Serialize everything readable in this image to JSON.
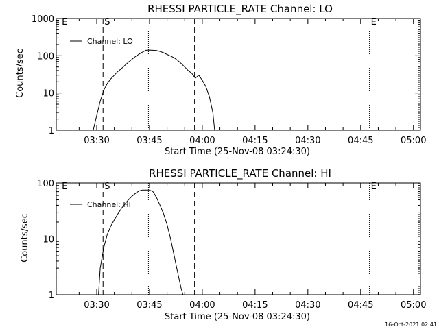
{
  "footer": {
    "timestamp": "16-Oct-2021 02:41"
  },
  "chart_data": [
    {
      "type": "line",
      "title": "RHESSI PARTICLE_RATE Channel: LO",
      "xlabel": "Start Time (25-Nov-08 03:24:30)",
      "ylabel": "Counts/sec",
      "yscale": "log",
      "ylim": [
        1,
        1000
      ],
      "xlim_min": [
        -5.5,
        98
      ],
      "xticks": [
        {
          "t": 6,
          "label": "03:30"
        },
        {
          "t": 21,
          "label": "03:45"
        },
        {
          "t": 36,
          "label": "04:00"
        },
        {
          "t": 51,
          "label": "04:15"
        },
        {
          "t": 66,
          "label": "04:30"
        },
        {
          "t": 81,
          "label": "04:45"
        },
        {
          "t": 96,
          "label": "05:00"
        }
      ],
      "yticks": [
        {
          "v": 1,
          "label": "1"
        },
        {
          "v": 10,
          "label": "10"
        },
        {
          "v": 100,
          "label": "100"
        },
        {
          "v": 1000,
          "label": "1000"
        }
      ],
      "legend": "Channel: LO",
      "markers": [
        {
          "t": -4.3,
          "style": "none",
          "label": "E"
        },
        {
          "t": 7.8,
          "style": "dashed",
          "label": "S"
        },
        {
          "t": 20.7,
          "style": "dotted",
          "label": ""
        },
        {
          "t": 33.8,
          "style": "dashed",
          "label": ""
        },
        {
          "t": 83.5,
          "style": "dotted",
          "label": "E"
        },
        {
          "t": 97.6,
          "style": "dotted",
          "label": ""
        }
      ],
      "series": [
        {
          "name": "Channel: LO",
          "x": [
            5.0,
            6.0,
            7.0,
            8.0,
            9.0,
            10.0,
            11.0,
            12.0,
            13.0,
            14.0,
            15.0,
            16.0,
            17.0,
            18.0,
            19.0,
            20.0,
            21.0,
            22.0,
            23.0,
            24.0,
            25.0,
            26.0,
            27.0,
            28.0,
            29.0,
            30.0,
            31.0,
            32.0,
            33.0,
            34.0,
            35.0,
            36.0,
            37.0,
            38.0,
            39.0,
            39.5
          ],
          "y": [
            1.0,
            2.5,
            6.0,
            12.0,
            18.0,
            24.0,
            30.0,
            38.0,
            45.0,
            55.0,
            67.0,
            80.0,
            95.0,
            110.0,
            125.0,
            140.0,
            142.0,
            140.0,
            138.0,
            130.0,
            120.0,
            108.0,
            98.0,
            88.0,
            75.0,
            62.0,
            50.0,
            40.0,
            34.0,
            25.0,
            30.0,
            22.0,
            15.0,
            8.0,
            3.0,
            1.0
          ]
        }
      ]
    },
    {
      "type": "line",
      "title": "RHESSI PARTICLE_RATE Channel: HI",
      "xlabel": "Start Time (25-Nov-08 03:24:30)",
      "ylabel": "Counts/sec",
      "yscale": "log",
      "ylim": [
        1,
        100
      ],
      "xlim_min": [
        -5.5,
        98
      ],
      "xticks": [
        {
          "t": 6,
          "label": "03:30"
        },
        {
          "t": 21,
          "label": "03:45"
        },
        {
          "t": 36,
          "label": "04:00"
        },
        {
          "t": 51,
          "label": "04:15"
        },
        {
          "t": 66,
          "label": "04:30"
        },
        {
          "t": 81,
          "label": "04:45"
        },
        {
          "t": 96,
          "label": "05:00"
        }
      ],
      "yticks": [
        {
          "v": 1,
          "label": "1"
        },
        {
          "v": 10,
          "label": "10"
        },
        {
          "v": 100,
          "label": "100"
        }
      ],
      "legend": "Channel: HI",
      "markers": [
        {
          "t": -4.3,
          "style": "none",
          "label": "E"
        },
        {
          "t": 7.8,
          "style": "dashed",
          "label": "S"
        },
        {
          "t": 20.7,
          "style": "dotted",
          "label": ""
        },
        {
          "t": 33.8,
          "style": "dashed",
          "label": ""
        },
        {
          "t": 83.5,
          "style": "dotted",
          "label": "E"
        },
        {
          "t": 97.6,
          "style": "dotted",
          "label": ""
        }
      ],
      "series": [
        {
          "name": "Channel: HI",
          "x": [
            6.5,
            7.0,
            8.0,
            9.0,
            10.0,
            11.0,
            12.0,
            13.0,
            14.0,
            15.0,
            16.0,
            17.0,
            18.0,
            19.0,
            20.0,
            21.0,
            22.0,
            23.0,
            24.0,
            25.0,
            26.0,
            27.0,
            28.0,
            29.0,
            30.0,
            30.5
          ],
          "y": [
            1.0,
            3.0,
            7.0,
            12.0,
            17.0,
            22.0,
            28.0,
            35.0,
            42.0,
            50.0,
            58.0,
            65.0,
            72.0,
            75.0,
            75.0,
            75.0,
            70.0,
            55.0,
            40.0,
            28.0,
            18.0,
            10.0,
            5.0,
            2.5,
            1.3,
            1.0
          ]
        }
      ]
    }
  ]
}
